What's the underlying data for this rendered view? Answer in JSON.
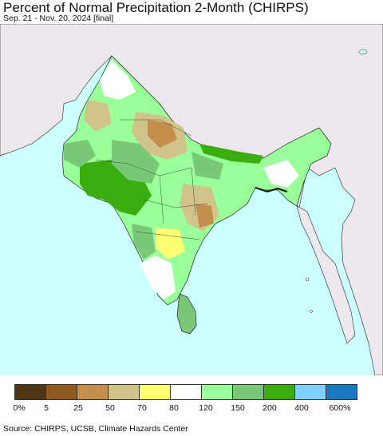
{
  "header": {
    "title": "Percent of Normal Precipitation 2-Month (CHIRPS)",
    "subtitle": "Sep. 21 - Nov. 20, 2024 [final]"
  },
  "colors": {
    "ocean": "#ccffff",
    "land_outside": "#ede8ee",
    "border": "#222222"
  },
  "legend": {
    "colors": [
      "#4f3615",
      "#8f5922",
      "#c48f4c",
      "#d1c48b",
      "#ffff73",
      "#ffffff",
      "#99ff99",
      "#78c878",
      "#3aad0f",
      "#7fcfff",
      "#1a78bf"
    ],
    "ticks": [
      "0%",
      "5",
      "25",
      "50",
      "70",
      "80",
      "120",
      "150",
      "200",
      "400",
      "600%"
    ]
  },
  "footer": {
    "source": "Source: CHIRPS, UCSB, Climate Hazards Center"
  }
}
